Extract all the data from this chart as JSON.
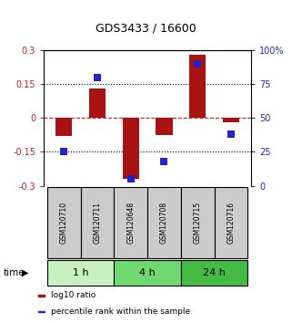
{
  "title": "GDS3433 / 16600",
  "samples": [
    "GSM120710",
    "GSM120711",
    "GSM120648",
    "GSM120708",
    "GSM120715",
    "GSM120716"
  ],
  "log10_ratio": [
    -0.08,
    0.13,
    -0.27,
    -0.075,
    0.28,
    -0.02
  ],
  "percentile_rank": [
    25,
    80,
    5,
    18,
    90,
    38
  ],
  "time_groups": [
    {
      "label": "1 h",
      "samples": [
        0,
        1
      ],
      "color": "#c8f0c0"
    },
    {
      "label": "4 h",
      "samples": [
        2,
        3
      ],
      "color": "#70d870"
    },
    {
      "label": "24 h",
      "samples": [
        4,
        5
      ],
      "color": "#44bb44"
    }
  ],
  "ylim_left": [
    -0.3,
    0.3
  ],
  "ylim_right": [
    0,
    100
  ],
  "yticks_left": [
    -0.3,
    -0.15,
    0,
    0.15,
    0.3
  ],
  "ytick_labels_left": [
    "-0.3",
    "-0.15",
    "0",
    "0.15",
    "0.3"
  ],
  "yticks_right": [
    0,
    25,
    50,
    75,
    100
  ],
  "ytick_labels_right": [
    "0",
    "25",
    "50",
    "75",
    "100%"
  ],
  "hlines_dotted": [
    0.15,
    -0.15
  ],
  "hline_dashed": 0,
  "bar_color": "#aa1111",
  "dot_color": "#2222cc",
  "bar_width": 0.5,
  "dot_size": 40,
  "left_tick_color": "#cc2222",
  "right_tick_color": "#2222cc",
  "legend_items": [
    {
      "label": "log10 ratio",
      "color": "#aa1111"
    },
    {
      "label": "percentile rank within the sample",
      "color": "#2222cc"
    }
  ],
  "bg_color": "#ffffff",
  "sample_box_color": "#cccccc"
}
